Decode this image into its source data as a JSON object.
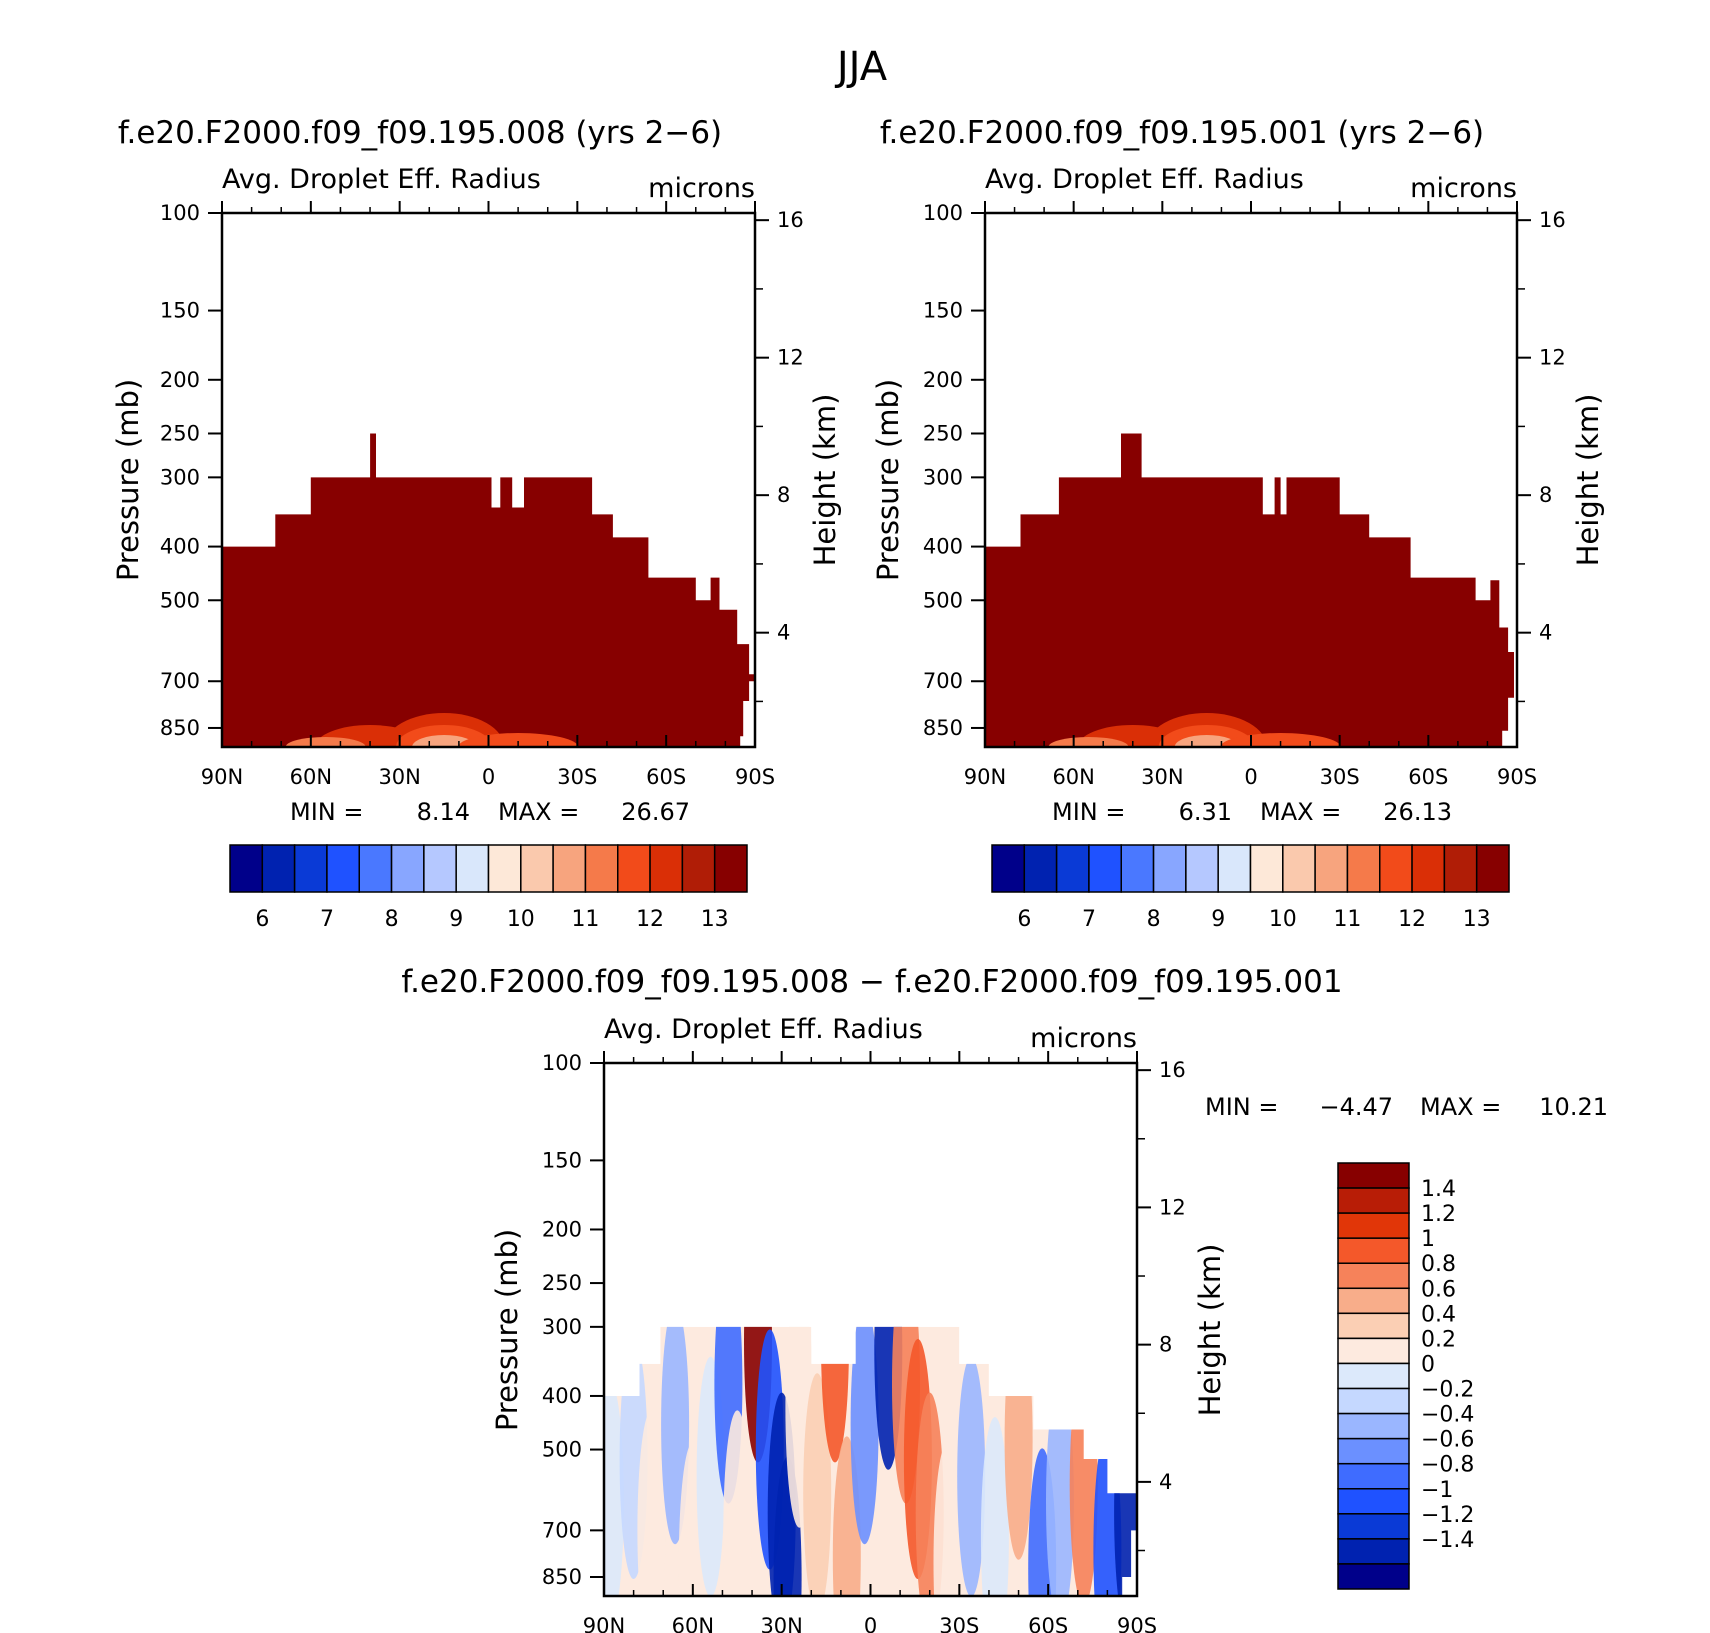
{
  "figure_title": "JJA",
  "colors": {
    "abs_palette": [
      "#00008a",
      "#0022b0",
      "#0a3ad6",
      "#1f52ff",
      "#4a78ff",
      "#88a6ff",
      "#b5c8ff",
      "#d9e7fb",
      "#fde8d8",
      "#fac9ad",
      "#f7a47e",
      "#f57a4a",
      "#f24b1a",
      "#da2f06",
      "#b01d06",
      "#870000"
    ],
    "diff_palette": [
      "#00008a",
      "#0022b0",
      "#0a3ad6",
      "#1f52ff",
      "#3f6cff",
      "#6b90ff",
      "#9ab6ff",
      "#c5d8ff",
      "#dce9fb",
      "#fdeadf",
      "#fbcfb4",
      "#f8ad8a",
      "#f6825a",
      "#f4582a",
      "#e13608",
      "#b81d06",
      "#870000"
    ]
  },
  "chart_data": [
    {
      "type": "heatmap",
      "title": "f.e20.F2000.f09_f09.195.008 (yrs 2−6)",
      "variable": "Avg. Droplet Eff. Radius",
      "units": "microns",
      "ylabel": "Pressure (mb)",
      "y2label": "Height (km)",
      "x_ticks": [
        "90N",
        "60N",
        "30N",
        "0",
        "30S",
        "60S",
        "90S"
      ],
      "x_range": [
        90,
        -90
      ],
      "p_ticks": [
        "100",
        "150",
        "200",
        "250",
        "300",
        "400",
        "500",
        "700",
        "850"
      ],
      "p_range": [
        100,
        920
      ],
      "z_ticks": [
        "16",
        "12",
        "8",
        "4"
      ],
      "min_label": "MIN =",
      "min_value": "8.14",
      "max_label": "MAX =",
      "max_value": "26.67",
      "colorbar_labels": [
        "6",
        "7",
        "8",
        "9",
        "10",
        "11",
        "12",
        "13"
      ],
      "top_profile": [
        [
          90,
          400
        ],
        [
          72,
          400
        ],
        [
          72,
          350
        ],
        [
          60,
          350
        ],
        [
          60,
          300
        ],
        [
          40,
          300
        ],
        [
          40,
          250
        ],
        [
          38,
          250
        ],
        [
          38,
          300
        ],
        [
          -1,
          300
        ],
        [
          -1,
          340
        ],
        [
          -4,
          340
        ],
        [
          -4,
          300
        ],
        [
          -8,
          300
        ],
        [
          -8,
          340
        ],
        [
          -12,
          340
        ],
        [
          -12,
          300
        ],
        [
          -35,
          300
        ],
        [
          -35,
          350
        ],
        [
          -42,
          350
        ],
        [
          -42,
          385
        ],
        [
          -54,
          385
        ],
        [
          -54,
          455
        ],
        [
          -70,
          455
        ],
        [
          -70,
          500
        ],
        [
          -75,
          500
        ],
        [
          -75,
          455
        ],
        [
          -78,
          455
        ],
        [
          -78,
          520
        ],
        [
          -84,
          520
        ],
        [
          -84,
          600
        ],
        [
          -88,
          600
        ],
        [
          -88,
          680
        ],
        [
          -90,
          680
        ]
      ],
      "bottom_profile": [
        [
          90,
          920
        ],
        [
          -85,
          920
        ],
        [
          -85,
          880
        ],
        [
          -86,
          880
        ],
        [
          -86,
          760
        ],
        [
          -88,
          760
        ],
        [
          -88,
          700
        ],
        [
          -90,
          700
        ]
      ]
    },
    {
      "type": "heatmap",
      "title": "f.e20.F2000.f09_f09.195.001 (yrs 2−6)",
      "variable": "Avg. Droplet Eff. Radius",
      "units": "microns",
      "ylabel": "Pressure (mb)",
      "y2label": "Height (km)",
      "x_ticks": [
        "90N",
        "60N",
        "30N",
        "0",
        "30S",
        "60S",
        "90S"
      ],
      "x_range": [
        90,
        -90
      ],
      "p_ticks": [
        "100",
        "150",
        "200",
        "250",
        "300",
        "400",
        "500",
        "700",
        "850"
      ],
      "p_range": [
        100,
        920
      ],
      "z_ticks": [
        "16",
        "12",
        "8",
        "4"
      ],
      "min_label": "MIN =",
      "min_value": "6.31",
      "max_label": "MAX =",
      "max_value": "26.13",
      "colorbar_labels": [
        "6",
        "7",
        "8",
        "9",
        "10",
        "11",
        "12",
        "13"
      ],
      "top_profile": [
        [
          90,
          400
        ],
        [
          78,
          400
        ],
        [
          78,
          350
        ],
        [
          65,
          350
        ],
        [
          65,
          300
        ],
        [
          44,
          300
        ],
        [
          44,
          250
        ],
        [
          37,
          250
        ],
        [
          37,
          300
        ],
        [
          -4,
          300
        ],
        [
          -4,
          350
        ],
        [
          -8,
          350
        ],
        [
          -8,
          300
        ],
        [
          -10,
          300
        ],
        [
          -10,
          350
        ],
        [
          -12,
          350
        ],
        [
          -12,
          300
        ],
        [
          -30,
          300
        ],
        [
          -30,
          350
        ],
        [
          -40,
          350
        ],
        [
          -40,
          385
        ],
        [
          -54,
          385
        ],
        [
          -54,
          455
        ],
        [
          -76,
          455
        ],
        [
          -76,
          500
        ],
        [
          -81,
          500
        ],
        [
          -81,
          460
        ],
        [
          -84,
          460
        ],
        [
          -84,
          560
        ],
        [
          -87,
          560
        ],
        [
          -87,
          620
        ],
        [
          -89,
          620
        ],
        [
          -89,
          700
        ],
        [
          -90,
          700
        ]
      ],
      "bottom_profile": [
        [
          90,
          920
        ],
        [
          -85,
          920
        ],
        [
          -85,
          860
        ],
        [
          -87,
          860
        ],
        [
          -87,
          750
        ],
        [
          -89,
          750
        ],
        [
          -89,
          700
        ],
        [
          -90,
          700
        ]
      ]
    },
    {
      "type": "heatmap",
      "title": "f.e20.F2000.f09_f09.195.008 − f.e20.F2000.f09_f09.195.001",
      "variable": "Avg. Droplet Eff. Radius",
      "units": "microns",
      "ylabel": "Pressure (mb)",
      "y2label": "Height (km)",
      "x_ticks": [
        "90N",
        "60N",
        "30N",
        "0",
        "30S",
        "60S",
        "90S"
      ],
      "x_range": [
        90,
        -90
      ],
      "p_ticks": [
        "100",
        "150",
        "200",
        "250",
        "300",
        "400",
        "500",
        "700",
        "850"
      ],
      "p_range": [
        100,
        920
      ],
      "z_ticks": [
        "16",
        "12",
        "8",
        "4"
      ],
      "min_label": "MIN =",
      "min_value": "−4.47",
      "max_label": "MAX =",
      "max_value": "10.21",
      "colorbar_labels": [
        "1.4",
        "1.2",
        "1",
        "0.8",
        "0.6",
        "0.4",
        "0.2",
        "0",
        "−0.2",
        "−0.4",
        "−0.6",
        "−0.8",
        "−1",
        "−1.2",
        "−1.4"
      ],
      "top_profile": [
        [
          90,
          400
        ],
        [
          78,
          400
        ],
        [
          78,
          350
        ],
        [
          71,
          350
        ],
        [
          71,
          300
        ],
        [
          20,
          300
        ],
        [
          20,
          350
        ],
        [
          5,
          350
        ],
        [
          5,
          300
        ],
        [
          -30,
          300
        ],
        [
          -30,
          350
        ],
        [
          -40,
          350
        ],
        [
          -40,
          400
        ],
        [
          -55,
          400
        ],
        [
          -55,
          460
        ],
        [
          -72,
          460
        ],
        [
          -72,
          520
        ],
        [
          -80,
          520
        ],
        [
          -80,
          600
        ],
        [
          -90,
          600
        ]
      ],
      "bottom_profile": [
        [
          90,
          920
        ],
        [
          -85,
          920
        ],
        [
          -85,
          850
        ],
        [
          -88,
          850
        ],
        [
          -88,
          700
        ],
        [
          -90,
          700
        ]
      ],
      "diff_bands": [
        {
          "x": 88,
          "p": 620,
          "v": 0.15
        },
        {
          "x": 80,
          "p": 520,
          "v": -0.15
        },
        {
          "x": 74,
          "p": 700,
          "v": 0.25
        },
        {
          "x": 66,
          "p": 450,
          "v": -0.2
        },
        {
          "x": 60,
          "p": 800,
          "v": 0.3
        },
        {
          "x": 54,
          "p": 560,
          "v": 0.2
        },
        {
          "x": 48,
          "p": 380,
          "v": -0.6
        },
        {
          "x": 45,
          "p": 700,
          "v": 0.4
        },
        {
          "x": 38,
          "p": 320,
          "v": 1.4
        },
        {
          "x": 34,
          "p": 500,
          "v": -0.9
        },
        {
          "x": 30,
          "p": 650,
          "v": -1.4
        },
        {
          "x": 28,
          "p": 850,
          "v": -1.4
        },
        {
          "x": 24,
          "p": 420,
          "v": 0.3
        },
        {
          "x": 18,
          "p": 600,
          "v": 0.5
        },
        {
          "x": 12,
          "p": 320,
          "v": 1.2
        },
        {
          "x": 8,
          "p": 780,
          "v": 0.7
        },
        {
          "x": 2,
          "p": 450,
          "v": -0.4
        },
        {
          "x": -6,
          "p": 330,
          "v": -1.3
        },
        {
          "x": -12,
          "p": 380,
          "v": 1.0
        },
        {
          "x": -16,
          "p": 520,
          "v": 1.2
        },
        {
          "x": -20,
          "p": 650,
          "v": 1.0
        },
        {
          "x": -26,
          "p": 800,
          "v": 0.4
        },
        {
          "x": -34,
          "p": 560,
          "v": -0.3
        },
        {
          "x": -42,
          "p": 720,
          "v": 0.2
        },
        {
          "x": -50,
          "p": 480,
          "v": 0.6
        },
        {
          "x": -58,
          "p": 820,
          "v": -0.6
        },
        {
          "x": -64,
          "p": 620,
          "v": -0.3
        },
        {
          "x": -72,
          "p": 580,
          "v": 0.8
        },
        {
          "x": -80,
          "p": 760,
          "v": -0.8
        },
        {
          "x": -87,
          "p": 650,
          "v": -1.3
        }
      ]
    }
  ]
}
